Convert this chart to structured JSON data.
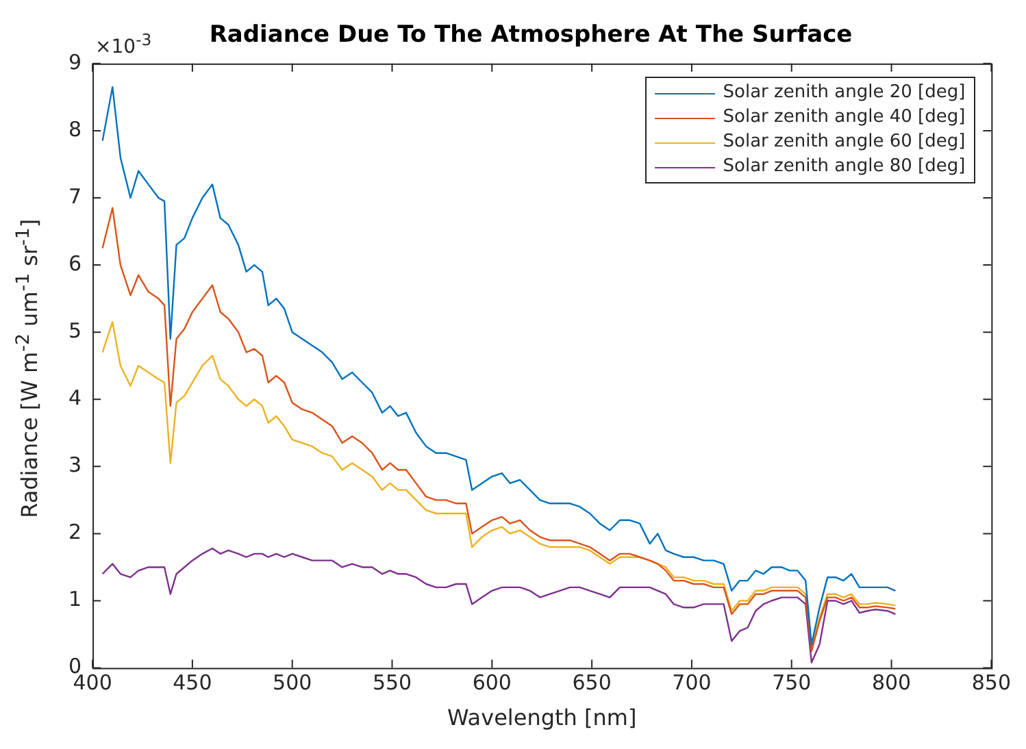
{
  "chart_data": {
    "type": "line",
    "title": "Radiance Due To The Atmosphere At The Surface",
    "xlabel": "Wavelength [nm]",
    "ylabel": "Radiance [W m$^{-2}$ um$^{-1}$ sr$^{-1}$]",
    "annotations": [
      "×10$^{-3}$"
    ],
    "x": [
      405,
      410,
      414,
      419,
      423,
      428,
      433,
      436,
      439,
      442,
      446,
      450,
      455,
      460,
      464,
      468,
      473,
      477,
      481,
      485,
      488,
      492,
      496,
      500,
      505,
      510,
      515,
      520,
      525,
      530,
      535,
      540,
      545,
      549,
      553,
      557,
      562,
      567,
      572,
      577,
      582,
      587,
      590,
      595,
      600,
      605,
      609,
      614,
      619,
      624,
      629,
      634,
      639,
      644,
      649,
      654,
      659,
      664,
      669,
      674,
      679,
      683,
      687,
      691,
      696,
      701,
      706,
      711,
      716,
      720,
      724,
      728,
      732,
      736,
      740,
      745,
      749,
      753,
      757,
      760,
      764,
      768,
      772,
      776,
      780,
      784,
      788,
      792,
      798,
      802
    ],
    "series": [
      {
        "name": "Solar zenith angle 20 [deg]",
        "color": "#0072bd",
        "values": [
          7.85,
          8.65,
          7.6,
          7.0,
          7.4,
          7.2,
          7.0,
          6.95,
          4.9,
          6.3,
          6.4,
          6.7,
          7.0,
          7.2,
          6.7,
          6.6,
          6.3,
          5.9,
          6.0,
          5.9,
          5.4,
          5.5,
          5.35,
          5.0,
          4.9,
          4.8,
          4.7,
          4.55,
          4.3,
          4.4,
          4.25,
          4.1,
          3.8,
          3.9,
          3.75,
          3.8,
          3.5,
          3.3,
          3.2,
          3.2,
          3.15,
          3.1,
          2.65,
          2.75,
          2.85,
          2.9,
          2.75,
          2.8,
          2.65,
          2.5,
          2.45,
          2.45,
          2.45,
          2.4,
          2.3,
          2.15,
          2.05,
          2.2,
          2.2,
          2.15,
          1.85,
          2.0,
          1.75,
          1.7,
          1.65,
          1.65,
          1.6,
          1.6,
          1.55,
          1.15,
          1.3,
          1.3,
          1.45,
          1.4,
          1.5,
          1.5,
          1.45,
          1.45,
          1.3,
          0.35,
          0.9,
          1.35,
          1.35,
          1.3,
          1.4,
          1.2,
          1.2,
          1.2,
          1.2,
          1.15
        ]
      },
      {
        "name": "Solar zenith angle 40 [deg]",
        "color": "#d95319",
        "values": [
          6.25,
          6.85,
          6.0,
          5.55,
          5.85,
          5.6,
          5.5,
          5.4,
          3.9,
          4.9,
          5.05,
          5.3,
          5.5,
          5.7,
          5.3,
          5.2,
          5.0,
          4.7,
          4.75,
          4.65,
          4.25,
          4.35,
          4.25,
          3.95,
          3.85,
          3.8,
          3.7,
          3.6,
          3.35,
          3.45,
          3.35,
          3.2,
          2.95,
          3.05,
          2.95,
          2.95,
          2.75,
          2.55,
          2.5,
          2.5,
          2.45,
          2.45,
          2.0,
          2.1,
          2.2,
          2.25,
          2.15,
          2.2,
          2.05,
          1.95,
          1.9,
          1.9,
          1.9,
          1.85,
          1.8,
          1.7,
          1.6,
          1.7,
          1.7,
          1.65,
          1.6,
          1.55,
          1.45,
          1.3,
          1.3,
          1.25,
          1.25,
          1.2,
          1.2,
          0.8,
          0.95,
          0.95,
          1.1,
          1.1,
          1.15,
          1.15,
          1.15,
          1.15,
          1.05,
          0.25,
          0.7,
          1.05,
          1.05,
          1.0,
          1.05,
          0.9,
          0.9,
          0.92,
          0.9,
          0.88
        ]
      },
      {
        "name": "Solar zenith angle 60 [deg]",
        "color": "#edb120",
        "values": [
          4.7,
          5.15,
          4.5,
          4.2,
          4.5,
          4.4,
          4.3,
          4.25,
          3.05,
          3.95,
          4.05,
          4.25,
          4.5,
          4.65,
          4.3,
          4.2,
          4.0,
          3.9,
          4.0,
          3.9,
          3.65,
          3.75,
          3.6,
          3.4,
          3.35,
          3.3,
          3.2,
          3.15,
          2.95,
          3.05,
          2.95,
          2.85,
          2.65,
          2.75,
          2.65,
          2.65,
          2.5,
          2.35,
          2.3,
          2.3,
          2.3,
          2.3,
          1.8,
          1.95,
          2.05,
          2.1,
          2.0,
          2.05,
          1.95,
          1.85,
          1.8,
          1.8,
          1.8,
          1.8,
          1.75,
          1.65,
          1.55,
          1.65,
          1.65,
          1.65,
          1.6,
          1.55,
          1.5,
          1.35,
          1.35,
          1.3,
          1.3,
          1.25,
          1.25,
          0.85,
          1.0,
          1.0,
          1.15,
          1.15,
          1.2,
          1.2,
          1.2,
          1.2,
          1.1,
          0.3,
          0.75,
          1.1,
          1.1,
          1.05,
          1.1,
          0.95,
          0.95,
          0.97,
          0.95,
          0.93
        ]
      },
      {
        "name": "Solar zenith angle 80 [deg]",
        "color": "#7e2f8e",
        "values": [
          1.4,
          1.55,
          1.4,
          1.35,
          1.45,
          1.5,
          1.5,
          1.5,
          1.1,
          1.4,
          1.5,
          1.6,
          1.7,
          1.78,
          1.7,
          1.75,
          1.7,
          1.65,
          1.7,
          1.7,
          1.65,
          1.7,
          1.65,
          1.7,
          1.65,
          1.6,
          1.6,
          1.6,
          1.5,
          1.55,
          1.5,
          1.5,
          1.4,
          1.45,
          1.4,
          1.4,
          1.35,
          1.25,
          1.2,
          1.2,
          1.25,
          1.25,
          0.95,
          1.05,
          1.15,
          1.2,
          1.2,
          1.2,
          1.15,
          1.05,
          1.1,
          1.15,
          1.2,
          1.2,
          1.15,
          1.1,
          1.05,
          1.2,
          1.2,
          1.2,
          1.2,
          1.15,
          1.1,
          0.95,
          0.9,
          0.9,
          0.95,
          0.95,
          0.95,
          0.4,
          0.55,
          0.6,
          0.85,
          0.95,
          1.0,
          1.05,
          1.05,
          1.05,
          0.95,
          0.08,
          0.35,
          1.0,
          1.0,
          0.95,
          1.0,
          0.82,
          0.85,
          0.87,
          0.85,
          0.8
        ]
      }
    ],
    "xlim": [
      400,
      850
    ],
    "xticks": [
      400,
      450,
      500,
      550,
      600,
      650,
      700,
      750,
      800,
      850
    ],
    "ylim": [
      0,
      9
    ],
    "yticks": [
      0,
      1,
      2,
      3,
      4,
      5,
      6,
      7,
      8,
      9
    ],
    "legend": "top right",
    "marker": "none",
    "line_style": "solid"
  }
}
